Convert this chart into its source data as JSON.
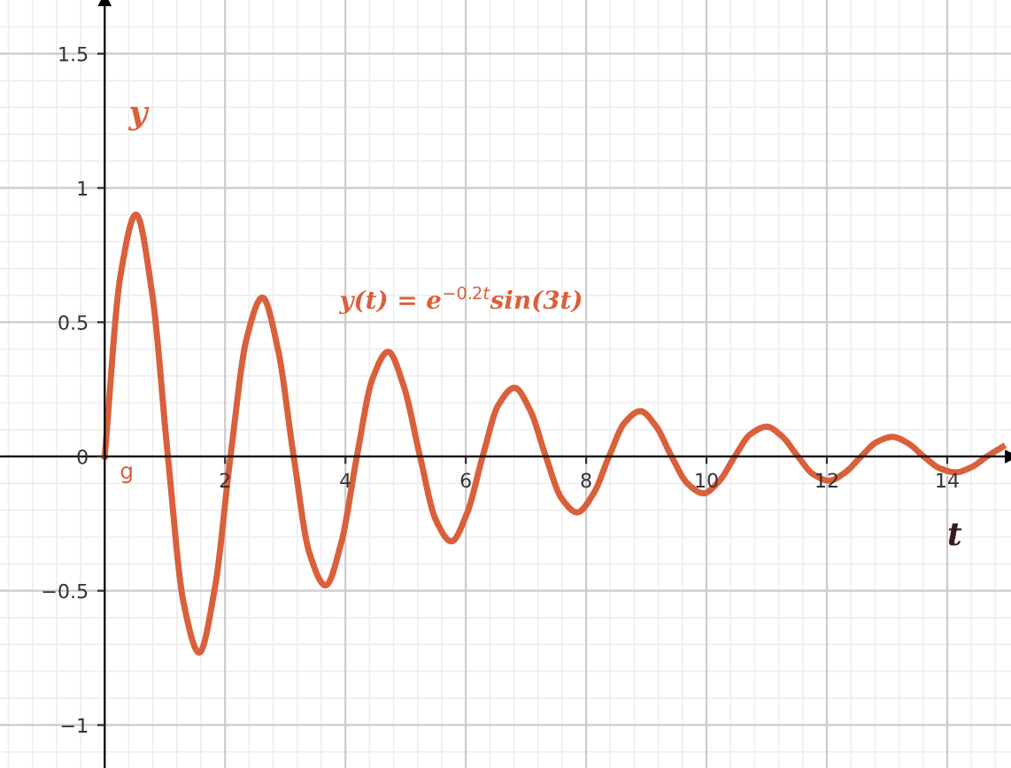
{
  "chart_data": {
    "type": "line",
    "xlabel": "t",
    "ylabel": "y",
    "annotations": [
      "y(t) = e$^{−0.2t}$sin(3t)"
    ],
    "x": [
      0,
      0.26,
      0.52,
      0.79,
      1.05,
      1.31,
      1.57,
      1.83,
      2.09,
      2.36,
      2.62,
      2.88,
      3.14,
      3.4,
      3.67,
      3.93,
      4.19,
      4.45,
      4.71,
      4.97,
      5.24,
      5.5,
      5.76,
      6.02,
      6.28,
      6.54,
      6.81,
      7.07,
      7.33,
      7.59,
      7.85,
      8.12,
      8.38,
      8.64,
      8.9,
      9.16,
      9.42,
      9.69,
      9.95,
      10.21,
      10.47,
      10.73,
      11.0,
      11.26,
      11.52,
      11.78,
      12.04,
      12.3,
      12.57,
      12.83,
      13.09,
      13.35,
      13.61,
      13.88,
      14.14,
      14.4,
      14.66,
      14.92
    ],
    "series": [
      {
        "name": "g",
        "color": "#d9603b",
        "values": [
          0,
          0.671,
          0.901,
          0.604,
          0,
          -0.544,
          -0.73,
          -0.49,
          0,
          0.441,
          0.592,
          0.398,
          0,
          -0.358,
          -0.48,
          -0.322,
          0,
          0.29,
          0.39,
          0.261,
          0,
          -0.235,
          -0.316,
          -0.212,
          0,
          0.191,
          0.256,
          0.172,
          0,
          -0.155,
          -0.208,
          -0.139,
          0,
          0.126,
          0.169,
          0.113,
          0,
          -0.102,
          -0.137,
          -0.092,
          0,
          0.083,
          0.111,
          0.074,
          0,
          -0.067,
          -0.09,
          -0.06,
          0,
          0.054,
          0.073,
          0.049,
          0,
          -0.044,
          -0.059,
          -0.04,
          0,
          0.036
        ]
      }
    ],
    "xlim": [
      -1.74,
      15.06
    ],
    "ylim": [
      -1.16,
      1.7
    ],
    "xticks": [
      2,
      4,
      6,
      8,
      10,
      12,
      14
    ],
    "yticks": [
      {
        "value": -1,
        "label": "−1"
      },
      {
        "value": -0.5,
        "label": "−0.5"
      },
      0,
      0.5,
      1,
      1.5
    ],
    "grid": true,
    "legend": false,
    "marker": "none",
    "line_style": "solid"
  }
}
